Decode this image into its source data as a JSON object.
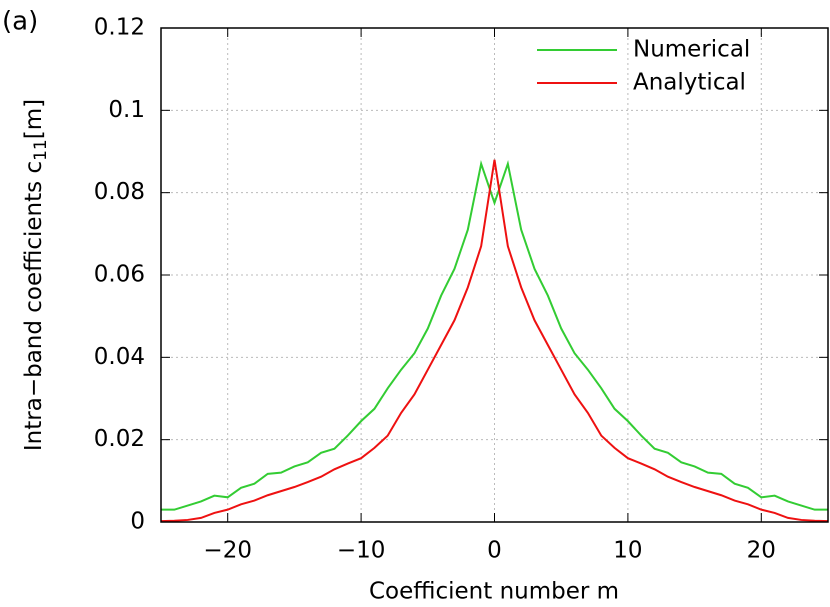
{
  "chart_data": {
    "type": "line",
    "title": "(a)",
    "xlabel": "Coefficient number m",
    "ylabel": "Intra−band coefficients c",
    "ylabel_sub": "11",
    "ylabel_suffix": "[m]",
    "x": [
      -25,
      -24,
      -23,
      -22,
      -21,
      -20,
      -19,
      -18,
      -17,
      -16,
      -15,
      -14,
      -13,
      -12,
      -11,
      -10,
      -9,
      -8,
      -7,
      -6,
      -5,
      -4,
      -3,
      -2,
      -1,
      0,
      1,
      2,
      3,
      4,
      5,
      6,
      7,
      8,
      9,
      10,
      11,
      12,
      13,
      14,
      15,
      16,
      17,
      18,
      19,
      20,
      21,
      22,
      23,
      24,
      25
    ],
    "series": [
      {
        "name": "Numerical",
        "color": "#33cc33",
        "values": [
          0.003,
          0.003,
          0.004,
          0.005,
          0.0064,
          0.006,
          0.0083,
          0.0093,
          0.0117,
          0.012,
          0.0135,
          0.0145,
          0.0168,
          0.0178,
          0.021,
          0.0245,
          0.0275,
          0.0325,
          0.037,
          0.041,
          0.047,
          0.055,
          0.0615,
          0.071,
          0.087,
          0.0775,
          0.087,
          0.071,
          0.0615,
          0.055,
          0.047,
          0.041,
          0.037,
          0.0325,
          0.0275,
          0.0245,
          0.021,
          0.0178,
          0.0168,
          0.0145,
          0.0135,
          0.012,
          0.0117,
          0.0093,
          0.0083,
          0.006,
          0.0064,
          0.005,
          0.004,
          0.003,
          0.003
        ]
      },
      {
        "name": "Analytical",
        "color": "#ee1111",
        "values": [
          0.0002,
          0.0003,
          0.0005,
          0.001,
          0.0022,
          0.003,
          0.0043,
          0.0052,
          0.0065,
          0.0075,
          0.0085,
          0.0097,
          0.011,
          0.0128,
          0.0142,
          0.0155,
          0.018,
          0.021,
          0.0265,
          0.031,
          0.037,
          0.043,
          0.049,
          0.057,
          0.067,
          0.088,
          0.067,
          0.057,
          0.049,
          0.043,
          0.037,
          0.031,
          0.0265,
          0.021,
          0.018,
          0.0155,
          0.0142,
          0.0128,
          0.011,
          0.0097,
          0.0085,
          0.0075,
          0.0065,
          0.0052,
          0.0043,
          0.003,
          0.0022,
          0.001,
          0.0005,
          0.0003,
          0.0002
        ]
      }
    ],
    "xlim": [
      -25,
      25
    ],
    "xticks": [
      {
        "value": -20,
        "label": "−20"
      },
      {
        "value": -10,
        "label": "−10"
      },
      0,
      10,
      20
    ],
    "ylim": [
      0,
      0.12
    ],
    "yticks": [
      0,
      0.02,
      0.04,
      0.06,
      0.08,
      0.1,
      0.12
    ],
    "grid": true,
    "legend": "top-right"
  }
}
